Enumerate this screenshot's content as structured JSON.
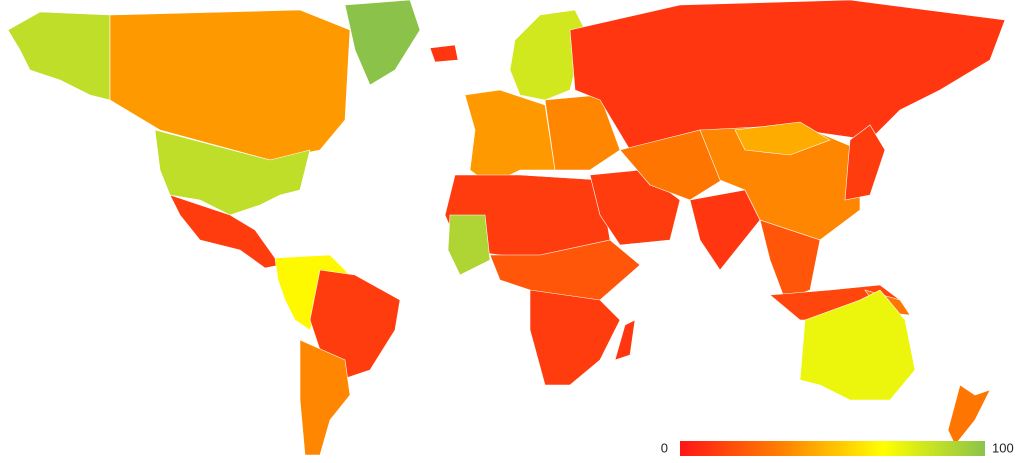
{
  "map": {
    "colorscale": [
      "#ff1616",
      "#ff8000",
      "#ffff00",
      "#8bc34a"
    ],
    "legend": {
      "min": 0,
      "max": 100
    },
    "regions": [
      {
        "value": 85
      },
      {
        "value": 40
      },
      {
        "value": 100
      },
      {
        "value": 85
      },
      {
        "value": 12
      },
      {
        "value": 65
      },
      {
        "value": 12
      },
      {
        "value": 35
      },
      {
        "value": 10
      },
      {
        "value": 80
      },
      {
        "value": 40
      },
      {
        "value": 35
      },
      {
        "value": 10
      },
      {
        "value": 12
      },
      {
        "value": 90
      },
      {
        "value": 20
      },
      {
        "value": 12
      },
      {
        "value": 10
      },
      {
        "value": 12
      },
      {
        "value": 30
      },
      {
        "value": 10
      },
      {
        "value": 35
      },
      {
        "value": 45
      },
      {
        "value": 20
      },
      {
        "value": 12
      },
      {
        "value": 15
      },
      {
        "value": 30
      },
      {
        "value": 72
      },
      {
        "value": 30
      }
    ]
  }
}
